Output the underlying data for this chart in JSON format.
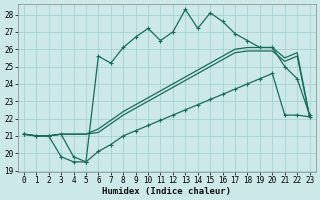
{
  "xlabel": "Humidex (Indice chaleur)",
  "bg_color": "#cce8e8",
  "grid_color": "#9fcece",
  "line_color": "#1a6b5a",
  "xlim": [
    -0.5,
    23.5
  ],
  "ylim": [
    18.9,
    28.6
  ],
  "yticks": [
    19,
    20,
    21,
    22,
    23,
    24,
    25,
    26,
    27,
    28
  ],
  "xticks": [
    0,
    1,
    2,
    3,
    4,
    5,
    6,
    7,
    8,
    9,
    10,
    11,
    12,
    13,
    14,
    15,
    16,
    17,
    18,
    19,
    20,
    21,
    22,
    23
  ],
  "curve_upper": [
    21.1,
    21.0,
    21.0,
    21.1,
    19.8,
    19.5,
    25.6,
    25.2,
    26.1,
    26.7,
    27.2,
    26.5,
    27.0,
    28.3,
    27.2,
    28.1,
    27.6,
    26.9,
    26.5,
    26.1,
    26.1,
    25.0,
    24.3,
    22.2
  ],
  "curve_lower": [
    21.1,
    21.0,
    21.0,
    19.8,
    19.5,
    19.5,
    20.1,
    20.5,
    21.0,
    21.3,
    21.6,
    21.9,
    22.2,
    22.5,
    22.8,
    23.1,
    23.4,
    23.7,
    24.0,
    24.3,
    24.6,
    22.2,
    22.2,
    22.1
  ],
  "curve_mid1": [
    21.1,
    21.0,
    21.0,
    21.1,
    21.1,
    21.1,
    21.4,
    21.9,
    22.4,
    22.8,
    23.2,
    23.6,
    24.0,
    24.4,
    24.8,
    25.2,
    25.6,
    26.0,
    26.1,
    26.1,
    26.1,
    25.5,
    25.8,
    22.1
  ],
  "curve_mid2": [
    21.1,
    21.0,
    21.0,
    21.1,
    21.1,
    21.1,
    21.2,
    21.7,
    22.2,
    22.6,
    23.0,
    23.4,
    23.8,
    24.2,
    24.6,
    25.0,
    25.4,
    25.8,
    25.9,
    25.9,
    25.9,
    25.3,
    25.6,
    22.1
  ],
  "tick_fontsize": 5.5,
  "label_fontsize": 6.5
}
